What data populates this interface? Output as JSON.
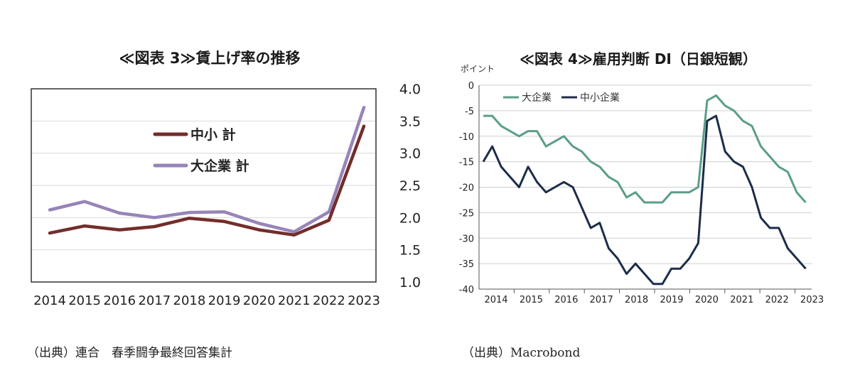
{
  "sources": {
    "left": "（出典）連合　春季闘争最終回答集計",
    "right": "（出典）Macrobond"
  },
  "chart_data": [
    {
      "type": "line",
      "title": "≪図表 3≫賃上げ率の推移",
      "xlabel": "",
      "ylabel": "",
      "categories": [
        "2014",
        "2015",
        "2016",
        "2017",
        "2018",
        "2019",
        "2020",
        "2021",
        "2022",
        "2023"
      ],
      "ylim": [
        1.0,
        4.0
      ],
      "yticks": [
        "1.0",
        "1.5",
        "2.0",
        "2.5",
        "3.0",
        "3.5",
        "4.0"
      ],
      "y_axis_side": "right",
      "grid": true,
      "legend_placement": "upper-center",
      "series": [
        {
          "name": "中小 計",
          "color": "#722d2b",
          "values": [
            1.76,
            1.87,
            1.81,
            1.86,
            1.99,
            1.94,
            1.81,
            1.73,
            1.96,
            3.42
          ]
        },
        {
          "name": "大企業 計",
          "color": "#9784b8",
          "values": [
            2.12,
            2.25,
            2.07,
            2.0,
            2.08,
            2.09,
            1.91,
            1.78,
            2.09,
            3.71
          ]
        }
      ]
    },
    {
      "type": "line",
      "title": "≪図表 4≫雇用判断 DI（日銀短観）",
      "ylabel": "ポイント",
      "xlabel": "",
      "years": [
        "2014",
        "2015",
        "2016",
        "2017",
        "2018",
        "2019",
        "2020",
        "2021",
        "2022",
        "2023"
      ],
      "x_start": "2014-Q1",
      "ylim": [
        -40,
        0
      ],
      "yticks": [
        "0",
        "-5",
        "-10",
        "-15",
        "-20",
        "-25",
        "-30",
        "-35",
        "-40"
      ],
      "grid": true,
      "legend_placement": "top-left",
      "series": [
        {
          "name": "大企業",
          "color": "#5a9e8a",
          "values": [
            -6,
            -6,
            -8,
            -9,
            -10,
            -9,
            -9,
            -12,
            -11,
            -10,
            -12,
            -13,
            -15,
            -16,
            -18,
            -19,
            -22,
            -21,
            -23,
            -23,
            -23,
            -21,
            -21,
            -21,
            -20,
            -3,
            -2,
            -4,
            -5,
            -7,
            -8,
            -12,
            -14,
            -16,
            -17,
            -21,
            -23
          ]
        },
        {
          "name": "中小企業",
          "color": "#1c2d4a",
          "values": [
            -15,
            -12,
            -16,
            -18,
            -20,
            -16,
            -19,
            -21,
            -20,
            -19,
            -20,
            -24,
            -28,
            -27,
            -32,
            -34,
            -37,
            -35,
            -37,
            -39,
            -39,
            -36,
            -36,
            -34,
            -31,
            -7,
            -6,
            -13,
            -15,
            -16,
            -20,
            -26,
            -28,
            -28,
            -32,
            -34,
            -36
          ]
        }
      ]
    }
  ]
}
